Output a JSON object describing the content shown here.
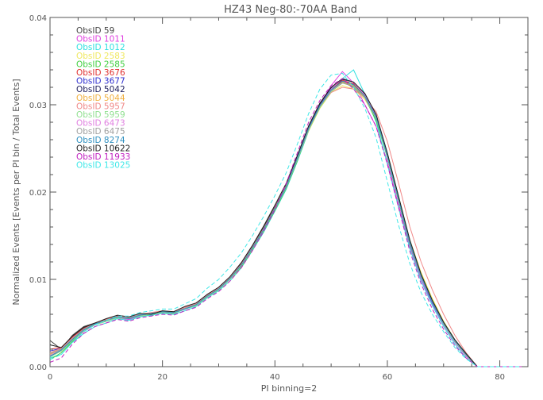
{
  "chart_data": {
    "type": "line",
    "title": "HZ43 Neg-80:-70AA Band",
    "xlabel": "PI binning=2",
    "ylabel": "Normalized Events [Events per PI bin / Total Events]",
    "xlim": [
      0,
      85
    ],
    "ylim": [
      0,
      0.04
    ],
    "xticks": [
      0,
      20,
      40,
      60,
      80
    ],
    "yticks": [
      0.0,
      0.01,
      0.02,
      0.03,
      0.04
    ],
    "xtick_labels": [
      "0",
      "20",
      "40",
      "60",
      "80"
    ],
    "ytick_labels": [
      "0.00",
      "0.01",
      "0.02",
      "0.03",
      "0.04"
    ],
    "grid": false,
    "legend_position": "top-left",
    "x": [
      0,
      2,
      4,
      6,
      8,
      10,
      12,
      14,
      16,
      18,
      20,
      22,
      24,
      26,
      28,
      30,
      32,
      34,
      36,
      38,
      40,
      42,
      44,
      46,
      48,
      50,
      52,
      54,
      56,
      58,
      60,
      62,
      64,
      66,
      68,
      70,
      72,
      74,
      76,
      78,
      80,
      82,
      84
    ],
    "series": [
      {
        "name": "ObsID 59",
        "color": "#444444",
        "dashed": false,
        "values": [
          0.003,
          0.002,
          0.0036,
          0.0046,
          0.005,
          0.0054,
          0.0058,
          0.0055,
          0.006,
          0.0058,
          0.0064,
          0.006,
          0.0068,
          0.0072,
          0.0082,
          0.009,
          0.0102,
          0.0118,
          0.0138,
          0.016,
          0.0183,
          0.0208,
          0.024,
          0.0275,
          0.03,
          0.0315,
          0.0325,
          0.0322,
          0.031,
          0.0285,
          0.024,
          0.019,
          0.014,
          0.0105,
          0.0075,
          0.005,
          0.003,
          0.0015,
          0.0,
          0.0,
          0.0,
          0.0,
          0.0
        ]
      },
      {
        "name": "ObsID 1011",
        "color": "#e040e0",
        "dashed": false,
        "values": [
          0.0012,
          0.0018,
          0.003,
          0.004,
          0.0048,
          0.0052,
          0.0056,
          0.0054,
          0.0058,
          0.006,
          0.0062,
          0.0061,
          0.0066,
          0.007,
          0.008,
          0.0088,
          0.01,
          0.0115,
          0.0135,
          0.0156,
          0.018,
          0.0205,
          0.0238,
          0.0272,
          0.03,
          0.0322,
          0.0338,
          0.0325,
          0.03,
          0.0275,
          0.0235,
          0.0185,
          0.0138,
          0.01,
          0.0072,
          0.0048,
          0.0028,
          0.0012,
          0.0,
          0.0,
          0.0,
          0.0,
          0.0
        ]
      },
      {
        "name": "ObsID 1012",
        "color": "#30e0e0",
        "dashed": false,
        "values": [
          0.001,
          0.0014,
          0.0028,
          0.0038,
          0.0046,
          0.005,
          0.0055,
          0.0053,
          0.0057,
          0.0059,
          0.0061,
          0.006,
          0.0064,
          0.0069,
          0.0079,
          0.0087,
          0.0098,
          0.0113,
          0.0133,
          0.0154,
          0.0178,
          0.0203,
          0.0235,
          0.027,
          0.0298,
          0.0318,
          0.033,
          0.034,
          0.0312,
          0.028,
          0.0232,
          0.0182,
          0.0135,
          0.0098,
          0.007,
          0.0046,
          0.0026,
          0.001,
          0.0,
          0.0,
          0.0,
          0.0,
          0.0
        ]
      },
      {
        "name": "ObsID 2583",
        "color": "#f0e860",
        "dashed": false,
        "values": [
          0.0015,
          0.002,
          0.0032,
          0.0042,
          0.0049,
          0.0053,
          0.0057,
          0.0056,
          0.0059,
          0.0061,
          0.0063,
          0.0062,
          0.0067,
          0.0071,
          0.0081,
          0.0089,
          0.0101,
          0.0116,
          0.0136,
          0.0157,
          0.0181,
          0.0206,
          0.0238,
          0.027,
          0.0296,
          0.0314,
          0.0322,
          0.0318,
          0.0306,
          0.0285,
          0.0245,
          0.0195,
          0.0145,
          0.0108,
          0.0078,
          0.0052,
          0.0031,
          0.0014,
          0.0,
          0.0,
          0.0,
          0.0,
          0.0
        ]
      },
      {
        "name": "ObsID 2585",
        "color": "#40d040",
        "dashed": false,
        "values": [
          0.0008,
          0.0016,
          0.0029,
          0.0041,
          0.0048,
          0.0052,
          0.0056,
          0.0055,
          0.0058,
          0.006,
          0.0062,
          0.0061,
          0.0066,
          0.007,
          0.008,
          0.0088,
          0.01,
          0.0114,
          0.0134,
          0.0155,
          0.0179,
          0.0204,
          0.0236,
          0.0271,
          0.0297,
          0.0316,
          0.0326,
          0.032,
          0.0308,
          0.0282,
          0.024,
          0.019,
          0.014,
          0.0103,
          0.0074,
          0.0049,
          0.0029,
          0.0013,
          0.0,
          0.0,
          0.0,
          0.0,
          0.0
        ]
      },
      {
        "name": "ObsID 3676",
        "color": "#e03030",
        "dashed": false,
        "values": [
          0.002,
          0.0022,
          0.0034,
          0.0044,
          0.005,
          0.0054,
          0.0058,
          0.0056,
          0.006,
          0.0061,
          0.0063,
          0.0062,
          0.0067,
          0.0072,
          0.0082,
          0.009,
          0.0102,
          0.0117,
          0.0137,
          0.0158,
          0.0182,
          0.0207,
          0.024,
          0.0274,
          0.03,
          0.0318,
          0.0328,
          0.0324,
          0.031,
          0.0286,
          0.0242,
          0.0192,
          0.0142,
          0.0104,
          0.0074,
          0.005,
          0.003,
          0.0014,
          0.0,
          0.0,
          0.0,
          0.0,
          0.0
        ]
      },
      {
        "name": "ObsID 3677",
        "color": "#3030d0",
        "dashed": false,
        "values": [
          0.0018,
          0.0021,
          0.0033,
          0.0043,
          0.0049,
          0.0053,
          0.0057,
          0.0055,
          0.0059,
          0.006,
          0.0062,
          0.0061,
          0.0066,
          0.0071,
          0.0081,
          0.0089,
          0.0101,
          0.0116,
          0.0136,
          0.0157,
          0.0181,
          0.0206,
          0.0239,
          0.0273,
          0.0299,
          0.0317,
          0.0327,
          0.0323,
          0.0309,
          0.0285,
          0.0241,
          0.0191,
          0.0141,
          0.0103,
          0.0073,
          0.0049,
          0.0029,
          0.0013,
          0.0,
          0.0,
          0.0,
          0.0,
          0.0
        ]
      },
      {
        "name": "ObsID 5042",
        "color": "#202060",
        "dashed": false,
        "values": [
          0.0012,
          0.0019,
          0.0031,
          0.0042,
          0.0049,
          0.0053,
          0.0057,
          0.0055,
          0.0059,
          0.0061,
          0.0063,
          0.0062,
          0.0067,
          0.0071,
          0.0081,
          0.0089,
          0.0101,
          0.0117,
          0.0137,
          0.0158,
          0.0182,
          0.0207,
          0.024,
          0.0274,
          0.0301,
          0.0319,
          0.0329,
          0.0326,
          0.0312,
          0.0288,
          0.0244,
          0.0194,
          0.0143,
          0.0105,
          0.0075,
          0.005,
          0.003,
          0.0014,
          0.0,
          0.0,
          0.0,
          0.0,
          0.0
        ]
      },
      {
        "name": "ObsID 5044",
        "color": "#f0b040",
        "dashed": false,
        "values": [
          0.0014,
          0.002,
          0.0032,
          0.0042,
          0.0049,
          0.0053,
          0.0057,
          0.0056,
          0.0059,
          0.0061,
          0.0063,
          0.0062,
          0.0067,
          0.0071,
          0.0081,
          0.0089,
          0.0101,
          0.0116,
          0.0136,
          0.0157,
          0.0181,
          0.0206,
          0.0238,
          0.0272,
          0.0298,
          0.0316,
          0.0326,
          0.0322,
          0.0309,
          0.0286,
          0.0243,
          0.0193,
          0.0143,
          0.0105,
          0.0075,
          0.005,
          0.003,
          0.0014,
          0.0,
          0.0,
          0.0,
          0.0,
          0.0
        ]
      },
      {
        "name": "ObsID 5957",
        "color": "#f08888",
        "dashed": false,
        "values": [
          0.0016,
          0.0021,
          0.0033,
          0.0043,
          0.005,
          0.0054,
          0.0058,
          0.0056,
          0.006,
          0.0062,
          0.0064,
          0.0063,
          0.0068,
          0.0072,
          0.0082,
          0.009,
          0.0102,
          0.0117,
          0.0137,
          0.0158,
          0.0182,
          0.0207,
          0.0239,
          0.0273,
          0.0298,
          0.0314,
          0.032,
          0.0318,
          0.0308,
          0.0292,
          0.0258,
          0.021,
          0.016,
          0.012,
          0.0088,
          0.006,
          0.0036,
          0.0016,
          0.0,
          0.0,
          0.0,
          0.0,
          0.0
        ]
      },
      {
        "name": "ObsID 5959",
        "color": "#90e090",
        "dashed": false,
        "values": [
          0.0011,
          0.0018,
          0.003,
          0.0041,
          0.0048,
          0.0052,
          0.0056,
          0.0055,
          0.0058,
          0.006,
          0.0062,
          0.0061,
          0.0066,
          0.007,
          0.008,
          0.0088,
          0.01,
          0.0115,
          0.0135,
          0.0156,
          0.018,
          0.0205,
          0.0237,
          0.0271,
          0.0297,
          0.0315,
          0.0325,
          0.0321,
          0.0308,
          0.0284,
          0.0241,
          0.0191,
          0.0141,
          0.0103,
          0.0074,
          0.0049,
          0.0029,
          0.0013,
          0.0,
          0.0,
          0.0,
          0.0,
          0.0
        ]
      },
      {
        "name": "ObsID 6473",
        "color": "#e080e0",
        "dashed": false,
        "values": [
          0.0013,
          0.0019,
          0.0031,
          0.0042,
          0.0049,
          0.0053,
          0.0057,
          0.0055,
          0.0059,
          0.0061,
          0.0063,
          0.0062,
          0.0067,
          0.0071,
          0.0081,
          0.0089,
          0.0101,
          0.0116,
          0.0136,
          0.0157,
          0.0181,
          0.0206,
          0.0239,
          0.0273,
          0.0299,
          0.0318,
          0.033,
          0.0326,
          0.0311,
          0.0287,
          0.0243,
          0.0193,
          0.0142,
          0.0104,
          0.0074,
          0.005,
          0.003,
          0.0014,
          0.0,
          0.0,
          0.0,
          0.0,
          0.0
        ]
      },
      {
        "name": "ObsID 6475",
        "color": "#a0a0a0",
        "dashed": false,
        "values": [
          0.0015,
          0.002,
          0.0032,
          0.0043,
          0.0049,
          0.0053,
          0.0057,
          0.0056,
          0.006,
          0.0061,
          0.0063,
          0.0062,
          0.0067,
          0.0071,
          0.0081,
          0.0089,
          0.0101,
          0.0116,
          0.0136,
          0.0157,
          0.0181,
          0.0206,
          0.0238,
          0.0272,
          0.0298,
          0.0316,
          0.0325,
          0.0321,
          0.0308,
          0.0285,
          0.0242,
          0.0192,
          0.0142,
          0.0104,
          0.0074,
          0.005,
          0.003,
          0.0014,
          0.0,
          0.0,
          0.0,
          0.0,
          0.0
        ]
      },
      {
        "name": "ObsID 8274",
        "color": "#3090c0",
        "dashed": false,
        "values": [
          0.0012,
          0.0019,
          0.0031,
          0.0042,
          0.0049,
          0.0053,
          0.0057,
          0.0055,
          0.0059,
          0.0061,
          0.0063,
          0.0062,
          0.0066,
          0.0071,
          0.0081,
          0.0089,
          0.0101,
          0.0116,
          0.0136,
          0.0157,
          0.0181,
          0.0206,
          0.0239,
          0.0273,
          0.0299,
          0.0317,
          0.0327,
          0.0323,
          0.031,
          0.0286,
          0.0242,
          0.0192,
          0.0142,
          0.0104,
          0.0074,
          0.005,
          0.003,
          0.0014,
          0.0,
          0.0,
          0.0,
          0.0,
          0.0
        ]
      },
      {
        "name": "ObsID 10622",
        "color": "#202020",
        "dashed": false,
        "values": [
          0.0025,
          0.0022,
          0.0035,
          0.0045,
          0.005,
          0.0055,
          0.0059,
          0.0057,
          0.0061,
          0.006,
          0.0064,
          0.0063,
          0.0069,
          0.0073,
          0.0083,
          0.0091,
          0.0103,
          0.0119,
          0.0139,
          0.0161,
          0.0185,
          0.021,
          0.0242,
          0.0276,
          0.0302,
          0.032,
          0.033,
          0.0326,
          0.0313,
          0.0289,
          0.0245,
          0.0195,
          0.0145,
          0.0106,
          0.0076,
          0.0051,
          0.0031,
          0.0015,
          0.0,
          0.0,
          0.0,
          0.0,
          0.0
        ]
      },
      {
        "name": "ObsID 11933",
        "color": "#c020c0",
        "dashed": true,
        "values": [
          0.0005,
          0.001,
          0.0026,
          0.0038,
          0.0046,
          0.005,
          0.0054,
          0.0052,
          0.0056,
          0.0058,
          0.006,
          0.0059,
          0.0064,
          0.0068,
          0.0078,
          0.0086,
          0.0098,
          0.0113,
          0.0133,
          0.0155,
          0.018,
          0.021,
          0.0245,
          0.028,
          0.0305,
          0.0322,
          0.033,
          0.0318,
          0.03,
          0.0275,
          0.0232,
          0.0182,
          0.0132,
          0.0095,
          0.0066,
          0.0043,
          0.0024,
          0.001,
          0.0,
          0.0,
          0.0,
          0.0,
          0.0
        ]
      },
      {
        "name": "ObsID 13025",
        "color": "#40e8e8",
        "dashed": true,
        "values": [
          0.0008,
          0.0014,
          0.0028,
          0.004,
          0.0048,
          0.0053,
          0.0058,
          0.0058,
          0.0062,
          0.0064,
          0.0066,
          0.0066,
          0.0072,
          0.0078,
          0.009,
          0.01,
          0.0114,
          0.013,
          0.015,
          0.0172,
          0.0196,
          0.0222,
          0.0255,
          0.029,
          0.0318,
          0.0334,
          0.0336,
          0.032,
          0.0296,
          0.0262,
          0.0212,
          0.0162,
          0.0118,
          0.0085,
          0.006,
          0.004,
          0.0022,
          0.0009,
          0.0,
          0.0,
          0.0,
          0.0,
          0.0
        ]
      }
    ]
  }
}
